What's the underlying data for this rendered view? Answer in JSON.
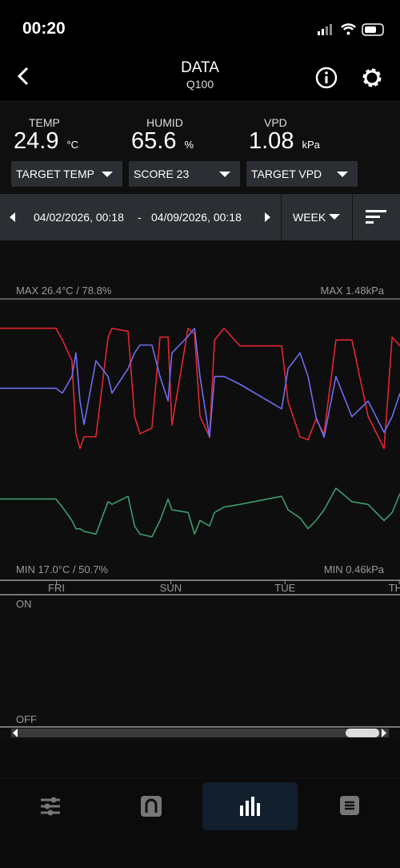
{
  "status": {
    "time": "00:20"
  },
  "header": {
    "title": "DATA",
    "subtitle": "Q100"
  },
  "sensors": [
    {
      "name": "TEMP",
      "value": 24.9,
      "unit": "°C",
      "color": "#e5262f"
    },
    {
      "name": "HUMID",
      "value": 65.6,
      "unit": "%",
      "color": "#6e6cf0"
    },
    {
      "name": "VPD",
      "value": 1.08,
      "unit": "kPa",
      "color": "#3c9c6c"
    }
  ],
  "dropdowns": [
    "TARGET TEMP",
    "SCORE 23",
    "TARGET VPD"
  ],
  "range": {
    "start": "04/02/2026, 00:18",
    "separator": "-",
    "end": "04/09/2026, 00:18",
    "period": "WEEK"
  },
  "chart_data": {
    "type": "line",
    "max_left": "MAX 26.4°C / 78.8%",
    "max_right": "MAX 1.48kPa",
    "min_left": "MIN 17.0°C / 50.7%",
    "min_right": "MIN 0.46kPa",
    "xlim": [
      0,
      168
    ],
    "xticks": [
      {
        "value": 23.7,
        "label": "FRI"
      },
      {
        "value": 71.7,
        "label": "SUN"
      },
      {
        "value": 119.7,
        "label": "TUE"
      },
      {
        "value": 167.7,
        "label": "THU"
      }
    ],
    "x": [
      0,
      23.5,
      26.2,
      30.2,
      31.9,
      33.6,
      35.3,
      40.3,
      45.4,
      47.0,
      53.8,
      56.5,
      58.8,
      63.8,
      67.2,
      70.6,
      72.2,
      79.0,
      81.7,
      84.0,
      88.0,
      90.1,
      94.1,
      100.8,
      118.3,
      121.0,
      126.0,
      129.4,
      132.7,
      136.1,
      141.1,
      147.8,
      154.6,
      161.3,
      164.7,
      168
    ],
    "series": [
      {
        "name": "TEMP",
        "color": "#e5262f",
        "ylim": [
          17.0,
          26.4
        ],
        "values": [
          25.4,
          25.4,
          25.0,
          24.3,
          21.8,
          21.3,
          21.7,
          21.7,
          25.1,
          25.4,
          25.3,
          22.4,
          21.8,
          22.0,
          25.1,
          25.1,
          22.1,
          25.4,
          25.2,
          22.4,
          21.7,
          25.0,
          25.4,
          24.8,
          24.8,
          22.9,
          21.7,
          21.6,
          22.3,
          21.8,
          25.0,
          25.0,
          22.4,
          21.3,
          25.1,
          24.8
        ]
      },
      {
        "name": "HUMID",
        "color": "#6e6cf0",
        "ylim": [
          50.7,
          78.8
        ],
        "values": [
          69.7,
          69.7,
          69.2,
          70.9,
          73.3,
          68.4,
          66.0,
          72.5,
          70.9,
          69.2,
          71.7,
          73.3,
          74.1,
          74.1,
          70.9,
          68.4,
          73.3,
          75.0,
          75.8,
          70.9,
          64.7,
          70.9,
          70.9,
          70.1,
          67.6,
          71.7,
          73.3,
          70.9,
          66.8,
          64.7,
          70.9,
          66.8,
          68.4,
          65.2,
          66.8,
          69.2
        ]
      },
      {
        "name": "VPD",
        "color": "#3c9c6c",
        "axis": "y2",
        "ylim": [
          0.46,
          1.48
        ],
        "values": [
          0.74,
          0.74,
          0.71,
          0.66,
          0.63,
          0.63,
          0.62,
          0.61,
          0.73,
          0.72,
          0.75,
          0.64,
          0.61,
          0.6,
          0.66,
          0.74,
          0.7,
          0.69,
          0.61,
          0.66,
          0.64,
          0.69,
          0.71,
          0.72,
          0.75,
          0.7,
          0.67,
          0.63,
          0.66,
          0.7,
          0.78,
          0.73,
          0.72,
          0.66,
          0.69,
          0.76
        ]
      }
    ],
    "switch_on": "ON",
    "switch_off": "OFF"
  }
}
